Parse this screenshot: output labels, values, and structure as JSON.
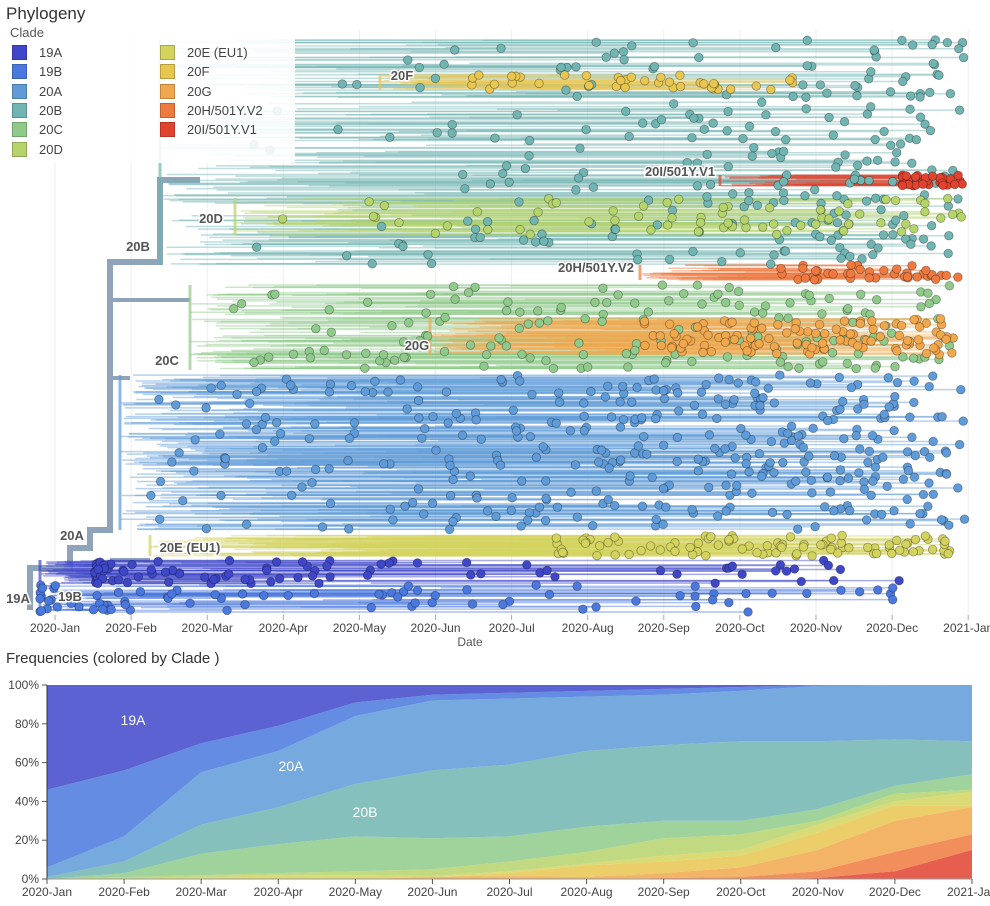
{
  "phylogeny": {
    "title": "Phylogeny",
    "legend_title": "Clade",
    "x_axis_label": "Date",
    "x_ticks": [
      "2020-Jan",
      "2020-Feb",
      "2020-Mar",
      "2020-Apr",
      "2020-May",
      "2020-Jun",
      "2020-Jul",
      "2020-Aug",
      "2020-Sep",
      "2020-Oct",
      "2020-Nov",
      "2020-Dec",
      "2021-Jan"
    ],
    "clade_labels": [
      "19A",
      "19B",
      "20A",
      "20E (EU1)",
      "20C",
      "20G",
      "20H/501Y.V2",
      "20D",
      "20B",
      "20I/501Y.V1",
      "20F"
    ]
  },
  "clades": [
    {
      "name": "19A",
      "color": "#3F47C9"
    },
    {
      "name": "19B",
      "color": "#4A78DE"
    },
    {
      "name": "20A",
      "color": "#5E9BD8"
    },
    {
      "name": "20B",
      "color": "#71B5B2"
    },
    {
      "name": "20C",
      "color": "#8FCA8B"
    },
    {
      "name": "20D",
      "color": "#B6D46C"
    },
    {
      "name": "20E (EU1)",
      "color": "#D3D35E"
    },
    {
      "name": "20F",
      "color": "#E8C650"
    },
    {
      "name": "20G",
      "color": "#F1A74C"
    },
    {
      "name": "20H/501Y.V2",
      "color": "#EE7A40"
    },
    {
      "name": "20I/501Y.V1",
      "color": "#E2432F"
    }
  ],
  "chart_data": {
    "type": "area",
    "title": "Frequencies (colored by Clade )",
    "stacked": true,
    "x": [
      "2020-Jan",
      "2020-Feb",
      "2020-Mar",
      "2020-Apr",
      "2020-May",
      "2020-Jun",
      "2020-Jul",
      "2020-Aug",
      "2020-Sep",
      "2020-Oct",
      "2020-Nov",
      "2020-Dec",
      "2021-Jan"
    ],
    "y_ticks": [
      "0%",
      "20%",
      "40%",
      "60%",
      "80%",
      "100%"
    ],
    "ylim": [
      0,
      100
    ],
    "grid": false,
    "inline_labels": [
      "19A",
      "20A",
      "20B"
    ],
    "series": [
      {
        "name": "20I/501Y.V1",
        "values": [
          0,
          0,
          0,
          0,
          0,
          0,
          0,
          0,
          0,
          0,
          0.5,
          4,
          15
        ]
      },
      {
        "name": "20H/501Y.V2",
        "values": [
          0,
          0,
          0,
          0,
          0,
          0,
          0,
          0,
          0.5,
          1,
          3.5,
          10,
          8
        ]
      },
      {
        "name": "20G",
        "values": [
          0,
          0,
          0,
          0,
          0,
          1,
          1.5,
          1,
          2.5,
          5,
          11,
          16,
          14
        ]
      },
      {
        "name": "20F",
        "values": [
          0,
          0,
          0,
          0,
          0,
          0,
          1.5,
          6,
          6,
          6,
          9,
          8,
          1
        ]
      },
      {
        "name": "20E (EU1)",
        "values": [
          0,
          0,
          1,
          2,
          2,
          0.5,
          1,
          1,
          3,
          3,
          4,
          2,
          7
        ]
      },
      {
        "name": "20D",
        "values": [
          0,
          1,
          1,
          1,
          2,
          3.5,
          5,
          6,
          9,
          8,
          2,
          4,
          1
        ]
      },
      {
        "name": "20C",
        "values": [
          0,
          2,
          11,
          15,
          18,
          16,
          13,
          13,
          9,
          7,
          6,
          4,
          8
        ]
      },
      {
        "name": "20B",
        "values": [
          1,
          6,
          15,
          19,
          27,
          35,
          37,
          39,
          39,
          41,
          35,
          24,
          17
        ]
      },
      {
        "name": "20A",
        "values": [
          5,
          13,
          27,
          29,
          35,
          36,
          34,
          28,
          26,
          26,
          28.5,
          28,
          29
        ]
      },
      {
        "name": "19B",
        "values": [
          40,
          34,
          15,
          13,
          7,
          3,
          3,
          3,
          3,
          2,
          0.5,
          0,
          0
        ]
      },
      {
        "name": "19A",
        "values": [
          54,
          44,
          30,
          21,
          9,
          5,
          4,
          3,
          2,
          1,
          0,
          0,
          0
        ]
      }
    ]
  }
}
